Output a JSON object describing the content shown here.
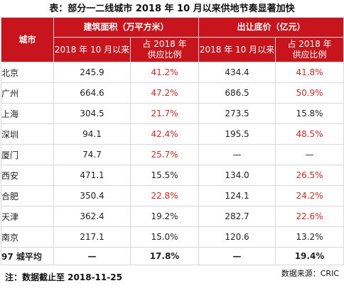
{
  "title": "表：部分一二线城市 2018 年 10 月以来供地节奏显著加快",
  "headers": {
    "city": "城市",
    "area_group": "建筑面积（万平方米）",
    "price_group": "出让底价（亿元）",
    "since_oct_2018": "2018 年 10 月以来",
    "share_line1": "占 2018 年",
    "share_line2": "供应比例"
  },
  "rows": [
    {
      "city": "北京",
      "area": "245.9",
      "area_share": "41.2%",
      "price": "434.4",
      "price_share": "41.8%",
      "area_red": true,
      "price_red": true
    },
    {
      "city": "广州",
      "area": "664.6",
      "area_share": "47.2%",
      "price": "686.5",
      "price_share": "50.9%",
      "area_red": true,
      "price_red": true
    },
    {
      "city": "上海",
      "area": "304.5",
      "area_share": "21.7%",
      "price": "273.5",
      "price_share": "15.8%",
      "area_red": true,
      "price_red": false
    },
    {
      "city": "深圳",
      "area": "94.1",
      "area_share": "42.4%",
      "price": "195.5",
      "price_share": "48.5%",
      "area_red": true,
      "price_red": true
    },
    {
      "city": "厦门",
      "area": "74.7",
      "area_share": "25.7%",
      "price": "—",
      "price_share": "—",
      "area_red": true,
      "price_red": false
    },
    {
      "city": "西安",
      "area": "471.1",
      "area_share": "15.5%",
      "price": "134.0",
      "price_share": "26.5%",
      "area_red": false,
      "price_red": true
    },
    {
      "city": "合肥",
      "area": "350.4",
      "area_share": "22.8%",
      "price": "124.1",
      "price_share": "24.2%",
      "area_red": true,
      "price_red": true
    },
    {
      "city": "天津",
      "area": "362.4",
      "area_share": "19.2%",
      "price": "282.7",
      "price_share": "22.6%",
      "area_red": false,
      "price_red": true
    },
    {
      "city": "南京",
      "area": "217.1",
      "area_share": "15.0%",
      "price": "120.6",
      "price_share": "13.2%",
      "area_red": false,
      "price_red": false
    }
  ],
  "average": {
    "city": "97 城平均",
    "area": "—",
    "area_share": "17.8%",
    "price": "—",
    "price_share": "19.4%"
  },
  "footnote": "注：数据截止至 2018-11-25",
  "source": "数据来源：CRIC",
  "colors": {
    "header_bg": "#c8151d",
    "highlight_text": "#e0261e"
  }
}
